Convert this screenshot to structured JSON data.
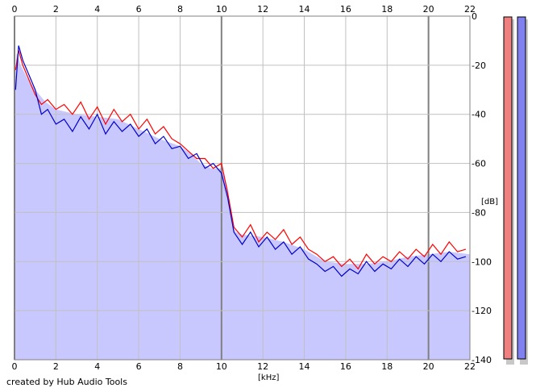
{
  "chart_data": {
    "type": "line",
    "xlabel": "[kHz]",
    "ylabel": "[dB]",
    "xlim": [
      0,
      22
    ],
    "ylim": [
      -140,
      0
    ],
    "x_ticks": [
      0,
      2,
      4,
      6,
      8,
      10,
      12,
      14,
      16,
      18,
      20,
      22
    ],
    "y_ticks": [
      0,
      -20,
      -40,
      -60,
      -80,
      -100,
      -120,
      -140
    ],
    "grid": true,
    "colors": {
      "fill": "#c8c8ff",
      "red_series": "#ff0000",
      "blue_series": "#0000cc",
      "grid": "#c0c0c0",
      "major_grid": "#808080",
      "meter_left": "#f08080",
      "meter_right": "#8080f0"
    },
    "envelope": {
      "x": [
        0,
        0.1,
        0.3,
        0.6,
        1.0,
        1.5,
        2.0,
        3.0,
        4.0,
        5.0,
        6.0,
        7.0,
        8.0,
        8.5,
        9.0,
        9.5,
        10.0,
        10.3,
        10.5,
        10.7,
        11.0,
        12.0,
        13.0,
        14.0,
        15.0,
        16.0,
        17.0,
        18.0,
        19.0,
        20.0,
        21.0,
        22.0
      ],
      "y": [
        -28,
        -15,
        -20,
        -25,
        -30,
        -35,
        -38,
        -40,
        -41,
        -42,
        -46,
        -50,
        -53,
        -56,
        -60,
        -62,
        -62,
        -70,
        -85,
        -88,
        -89,
        -90,
        -92,
        -95,
        -100,
        -101,
        -101,
        -100,
        -98,
        -97,
        -96,
        -97
      ]
    },
    "series_red": {
      "x": [
        0.05,
        0.2,
        0.4,
        0.7,
        1.0,
        1.3,
        1.6,
        2.0,
        2.4,
        2.8,
        3.2,
        3.6,
        4.0,
        4.4,
        4.8,
        5.2,
        5.6,
        6.0,
        6.4,
        6.8,
        7.2,
        7.6,
        8.0,
        8.4,
        8.8,
        9.2,
        9.6,
        10.0,
        10.3,
        10.6,
        11.0,
        11.4,
        11.8,
        12.2,
        12.6,
        13.0,
        13.4,
        13.8,
        14.2,
        14.6,
        15.0,
        15.4,
        15.8,
        16.2,
        16.6,
        17.0,
        17.4,
        17.8,
        18.2,
        18.6,
        19.0,
        19.4,
        19.8,
        20.2,
        20.6,
        21.0,
        21.4,
        21.8
      ],
      "y": [
        -22,
        -14,
        -20,
        -26,
        -32,
        -36,
        -34,
        -38,
        -36,
        -40,
        -35,
        -42,
        -37,
        -44,
        -38,
        -43,
        -40,
        -46,
        -42,
        -48,
        -45,
        -50,
        -52,
        -55,
        -58,
        -58,
        -62,
        -60,
        -72,
        -86,
        -90,
        -85,
        -92,
        -88,
        -91,
        -87,
        -93,
        -90,
        -95,
        -97,
        -100,
        -98,
        -102,
        -99,
        -103,
        -97,
        -101,
        -98,
        -100,
        -96,
        -99,
        -95,
        -98,
        -93,
        -97,
        -92,
        -96,
        -95
      ]
    },
    "series_blue": {
      "x": [
        0.05,
        0.2,
        0.4,
        0.7,
        1.0,
        1.3,
        1.6,
        2.0,
        2.4,
        2.8,
        3.2,
        3.6,
        4.0,
        4.4,
        4.8,
        5.2,
        5.6,
        6.0,
        6.4,
        6.8,
        7.2,
        7.6,
        8.0,
        8.4,
        8.8,
        9.2,
        9.6,
        10.0,
        10.3,
        10.6,
        11.0,
        11.4,
        11.8,
        12.2,
        12.6,
        13.0,
        13.4,
        13.8,
        14.2,
        14.6,
        15.0,
        15.4,
        15.8,
        16.2,
        16.6,
        17.0,
        17.4,
        17.8,
        18.2,
        18.6,
        19.0,
        19.4,
        19.8,
        20.2,
        20.6,
        21.0,
        21.4,
        21.8
      ],
      "y": [
        -30,
        -12,
        -18,
        -24,
        -30,
        -40,
        -38,
        -44,
        -42,
        -47,
        -41,
        -46,
        -40,
        -48,
        -43,
        -47,
        -44,
        -49,
        -46,
        -52,
        -49,
        -54,
        -53,
        -58,
        -56,
        -62,
        -60,
        -64,
        -74,
        -88,
        -93,
        -88,
        -94,
        -90,
        -95,
        -92,
        -97,
        -94,
        -99,
        -101,
        -104,
        -102,
        -106,
        -103,
        -105,
        -100,
        -104,
        -101,
        -103,
        -99,
        -102,
        -98,
        -101,
        -97,
        -100,
        -96,
        -99,
        -98
      ]
    }
  },
  "credit": "created by Hub Audio Tools"
}
